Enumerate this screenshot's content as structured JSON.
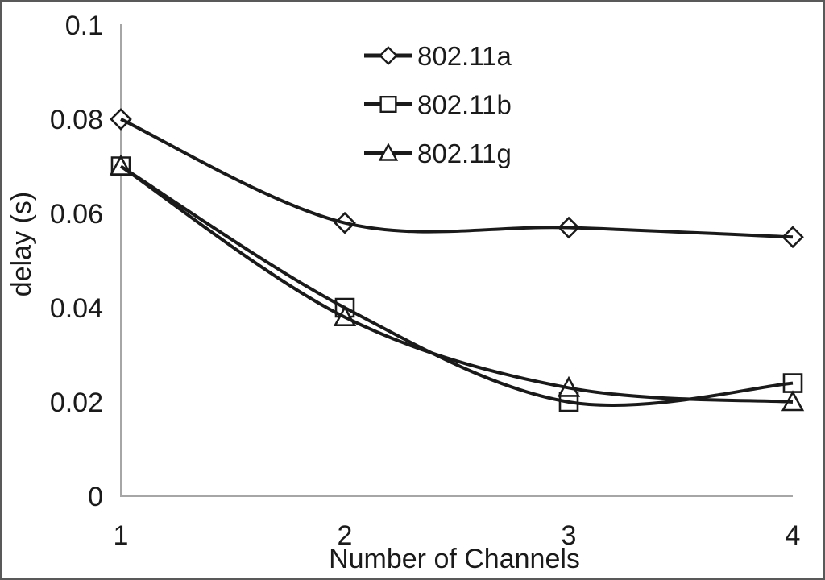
{
  "chart_data": {
    "type": "line",
    "title": "",
    "xlabel": "Number of Channels",
    "ylabel": "delay (s)",
    "x": [
      1,
      2,
      3,
      4
    ],
    "x_tick_labels": [
      "1",
      "2",
      "3",
      "4"
    ],
    "xlim": [
      1,
      4
    ],
    "ylim": [
      0,
      0.1
    ],
    "yticks": [
      0,
      0.02,
      0.04,
      0.06,
      0.08,
      0.1
    ],
    "ytick_labels": [
      "0",
      "0.02",
      "0.04",
      "0.06",
      "0.08",
      "0.1"
    ],
    "grid": false,
    "legend_position": "top-center-inside",
    "series": [
      {
        "name": "802.11a",
        "marker": "diamond",
        "values": [
          0.08,
          0.058,
          0.057,
          0.055
        ]
      },
      {
        "name": "802.11b",
        "marker": "square",
        "values": [
          0.07,
          0.04,
          0.02,
          0.024
        ]
      },
      {
        "name": "802.11g",
        "marker": "triangle",
        "values": [
          0.07,
          0.038,
          0.023,
          0.02
        ]
      }
    ],
    "colors": {
      "line": "#1a1a1a",
      "text": "#1a1a1a",
      "axis": "#a6a6a6",
      "background": "#ffffff",
      "border": "#595959"
    }
  }
}
